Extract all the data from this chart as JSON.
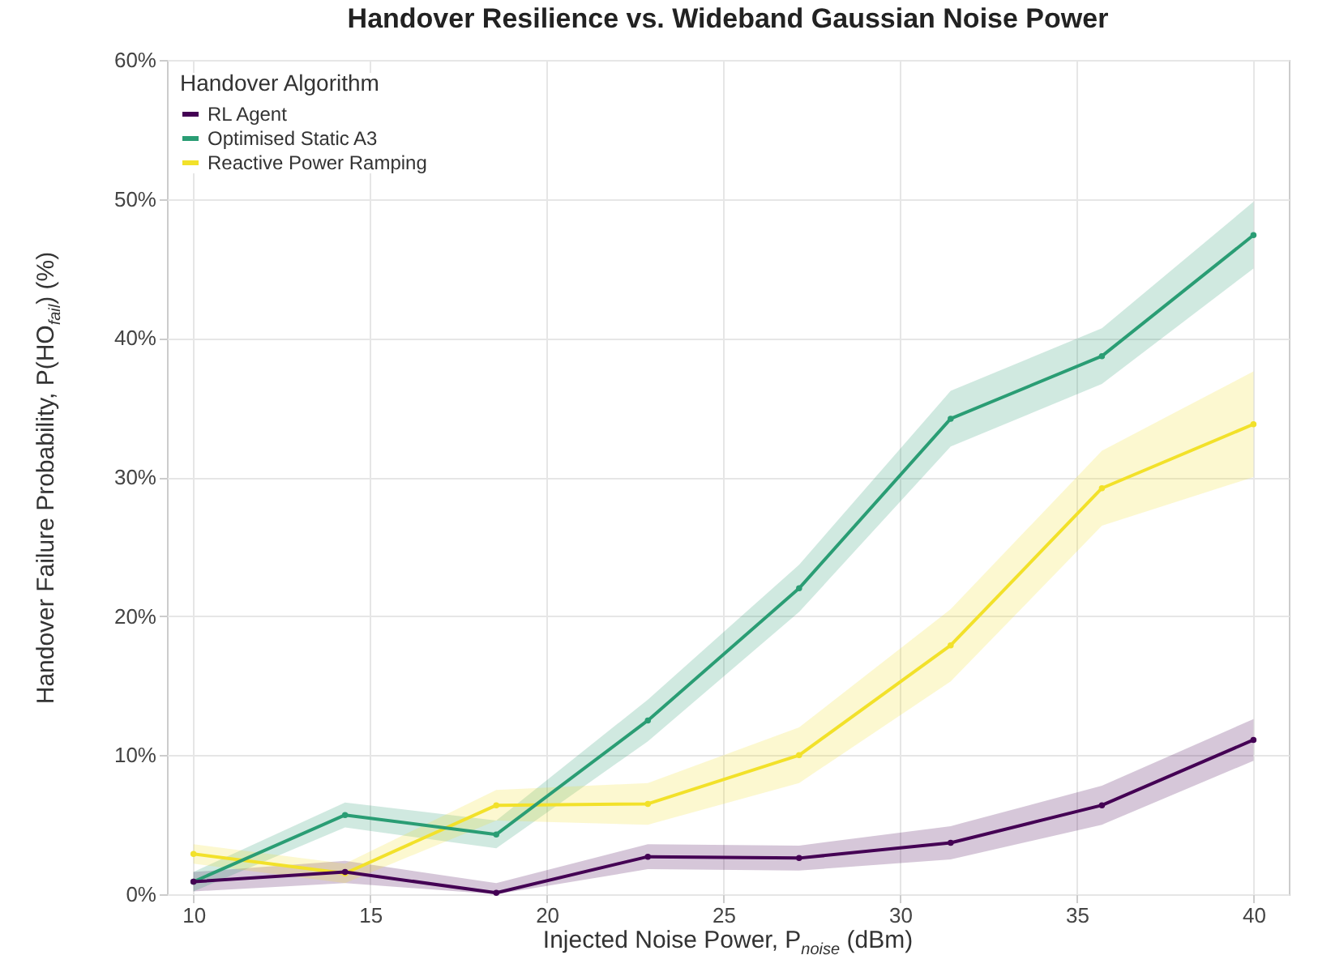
{
  "chart_data": {
    "type": "line",
    "title": "Handover Resilience vs. Wideband Gaussian Noise Power",
    "xlabel": "Injected Noise Power, P$_{noise}$ (dBm)",
    "ylabel": "Handover Failure Probability, P(HO$_{fail}$) (%)",
    "legend_title": "Handover Algorithm",
    "legend": "top left",
    "grid": true,
    "marker": "circle",
    "line_style": "solid",
    "x": [
      10,
      14.29,
      18.57,
      22.86,
      27.14,
      31.43,
      35.71,
      40
    ],
    "xlim": [
      9.25,
      41
    ],
    "xticks": [
      10,
      15,
      20,
      25,
      30,
      35,
      40
    ],
    "ylim": [
      0,
      60
    ],
    "yticks": [
      {
        "value": 0,
        "label": "0%"
      },
      {
        "value": 10,
        "label": "10%"
      },
      {
        "value": 20,
        "label": "20%"
      },
      {
        "value": 30,
        "label": "30%"
      },
      {
        "value": 40,
        "label": "40%"
      },
      {
        "value": 50,
        "label": "50%"
      },
      {
        "value": 60,
        "label": "60%"
      }
    ],
    "series": [
      {
        "name": "RL Agent",
        "color": "#440154",
        "values": [
          0.9,
          1.6,
          0.1,
          2.7,
          2.6,
          3.7,
          6.4,
          11.1
        ],
        "lower": [
          0.2,
          0.8,
          0,
          1.8,
          1.7,
          2.5,
          5.0,
          9.6
        ],
        "upper": [
          1.6,
          2.4,
          0.8,
          3.6,
          3.5,
          4.9,
          7.8,
          12.6
        ]
      },
      {
        "name": "Optimised Static A3",
        "color": "#2a9d74",
        "values": [
          0.9,
          5.7,
          4.3,
          12.5,
          22.0,
          34.2,
          38.7,
          47.4
        ],
        "lower": [
          0.2,
          4.8,
          3.3,
          11.0,
          20.3,
          32.2,
          36.7,
          45.0
        ],
        "upper": [
          1.6,
          6.6,
          5.3,
          14.0,
          23.7,
          36.2,
          40.7,
          49.8
        ]
      },
      {
        "name": "Reactive Power Ramping",
        "color": "#f2e12a",
        "values": [
          2.9,
          1.5,
          6.4,
          6.5,
          10.0,
          17.9,
          29.2,
          33.8
        ],
        "lower": [
          2.2,
          0.8,
          5.3,
          5.0,
          8.0,
          15.3,
          26.5,
          30.0
        ],
        "upper": [
          3.6,
          2.2,
          7.5,
          8.0,
          12.0,
          20.5,
          31.9,
          37.6
        ]
      }
    ]
  }
}
